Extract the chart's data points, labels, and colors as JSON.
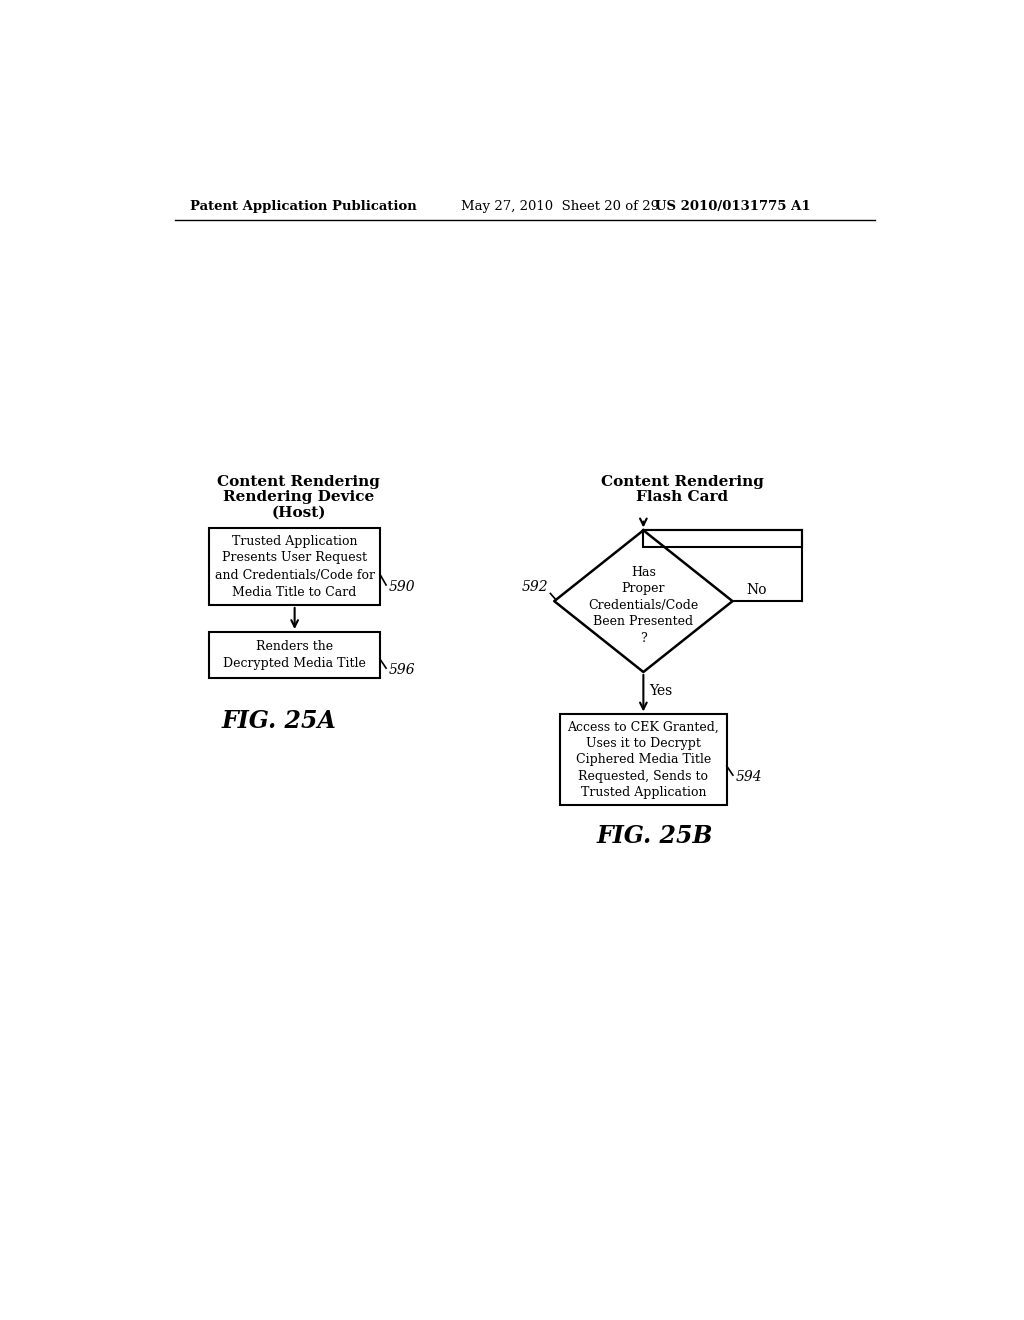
{
  "bg_color": "#ffffff",
  "header_left": "Patent Application Publication",
  "header_mid": "May 27, 2010  Sheet 20 of 29",
  "header_right": "US 2010/0131775 A1",
  "fig25a_title_line1": "Content Rendering",
  "fig25a_title_line2": "Rendering Device",
  "fig25a_title_line3": "(Host)",
  "fig25a_box1_text": "Trusted Application\nPresents User Request\nand Credentials/Code for\nMedia Title to Card",
  "fig25a_box1_label": "590",
  "fig25a_box2_text": "Renders the\nDecrypted Media Title",
  "fig25a_box2_label": "596",
  "fig25a_caption": "FIG. 25A",
  "fig25b_title_line1": "Content Rendering",
  "fig25b_title_line2": "Flash Card",
  "fig25b_diamond_text": "Has\nProper\nCredentials/Code\nBeen Presented\n?",
  "fig25b_diamond_label": "592",
  "fig25b_no_label": "No",
  "fig25b_yes_label": "Yes",
  "fig25b_box_text": "Access to CEK Granted,\nUses it to Decrypt\nCiphered Media Title\nRequested, Sends to\nTrusted Application",
  "fig25b_box_label": "594",
  "fig25b_caption": "FIG. 25B"
}
